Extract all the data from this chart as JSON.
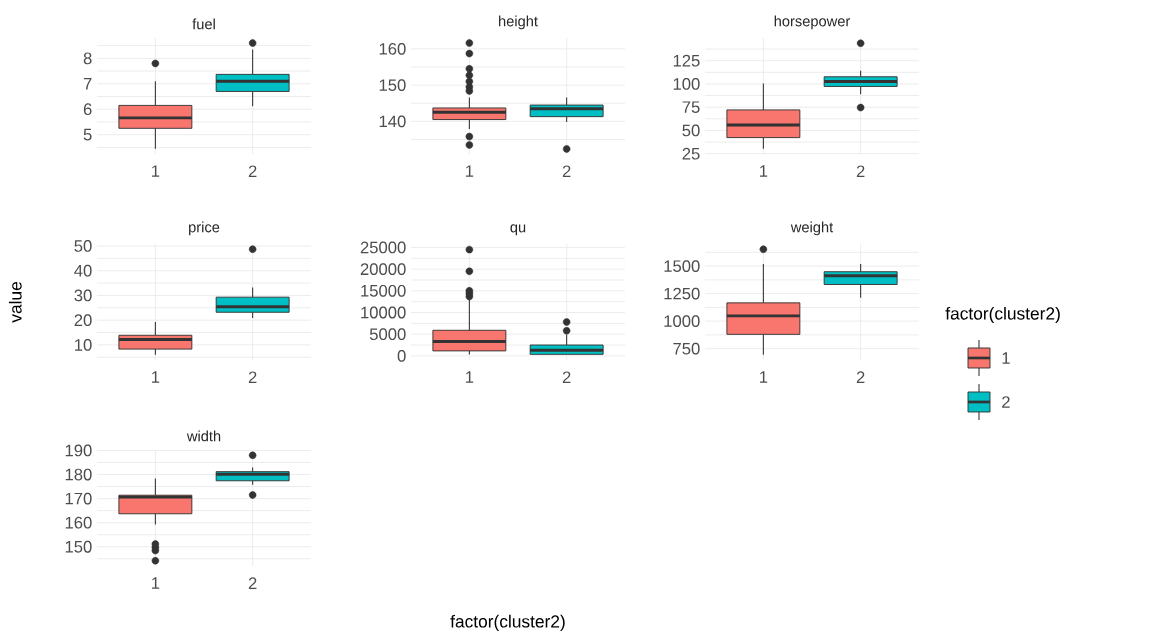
{
  "chart_data": [
    {
      "type": "box",
      "title": "fuel",
      "categories": [
        "1",
        "2"
      ],
      "grid": true,
      "ylim": [
        4.24,
        8.8
      ],
      "yticks": [
        {
          "value": 4.5,
          "label": null
        },
        5,
        {
          "value": 5.5,
          "label": null
        },
        6,
        {
          "value": 6.5,
          "label": null
        },
        7,
        {
          "value": 7.5,
          "label": null
        },
        8,
        {
          "value": 8.5,
          "label": null
        }
      ],
      "series": [
        {
          "color": "#f8766d",
          "boxes": [
            {
              "low": 4.45,
              "q1": 5.25,
              "median": 5.66,
              "q3": 6.15,
              "high": 7.1,
              "outliers": [
                7.8
              ]
            },
            null
          ]
        },
        {
          "color": "#00bfc4",
          "boxes": [
            null,
            {
              "low": 6.12,
              "q1": 6.7,
              "median": 7.1,
              "q3": 7.37,
              "high": 8.35,
              "outliers": [
                8.6
              ]
            }
          ]
        }
      ]
    },
    {
      "type": "box",
      "title": "height",
      "categories": [
        "1",
        "2"
      ],
      "grid": true,
      "ylim": [
        131,
        163
      ],
      "yticks": [
        {
          "value": 135,
          "label": null
        },
        140,
        {
          "value": 145,
          "label": null
        },
        150,
        {
          "value": 155,
          "label": null
        },
        160
      ],
      "series": [
        {
          "color": "#f8766d",
          "boxes": [
            {
              "low": 137.9,
              "q1": 140.5,
              "median": 142.5,
              "q3": 143.7,
              "high": 146.6,
              "outliers": [
                133.5,
                135.8,
                148.4,
                149.5,
                151,
                152.7,
                154.5,
                158.7,
                161.6
              ]
            },
            null
          ]
        },
        {
          "color": "#00bfc4",
          "boxes": [
            null,
            {
              "low": 139.8,
              "q1": 141.3,
              "median": 143.5,
              "q3": 144.5,
              "high": 146.6,
              "outliers": [
                132.4
              ]
            }
          ]
        }
      ]
    },
    {
      "type": "box",
      "title": "horsepower",
      "categories": [
        "1",
        "2"
      ],
      "grid": true,
      "ylim": [
        24.7,
        149.4
      ],
      "yticks": [
        25,
        {
          "value": 37.5,
          "label": null
        },
        50,
        {
          "value": 62.5,
          "label": null
        },
        75,
        {
          "value": 87.5,
          "label": null
        },
        100,
        {
          "value": 112.5,
          "label": null
        },
        125,
        {
          "value": 137.5,
          "label": null
        }
      ],
      "series": [
        {
          "color": "#f8766d",
          "boxes": [
            {
              "low": 30.4,
              "q1": 42.3,
              "median": 55.9,
              "q3": 72.1,
              "high": 100.5
            },
            null
          ]
        },
        {
          "color": "#00bfc4",
          "boxes": [
            null,
            {
              "low": 89,
              "q1": 97.3,
              "median": 102.7,
              "q3": 107.7,
              "high": 114.2,
              "outliers": [
                74.6,
                143.7
              ]
            }
          ]
        }
      ]
    },
    {
      "type": "box",
      "title": "price",
      "ylabel": "value",
      "categories": [
        "1",
        "2"
      ],
      "grid": true,
      "ylim": [
        3.9,
        50.8
      ],
      "yticks": [
        {
          "value": 5,
          "label": null
        },
        10,
        {
          "value": 15,
          "label": null
        },
        20,
        {
          "value": 25,
          "label": null
        },
        30,
        {
          "value": 35,
          "label": null
        },
        40,
        {
          "value": 45,
          "label": null
        },
        50
      ],
      "series": [
        {
          "color": "#f8766d",
          "boxes": [
            {
              "low": 6,
              "q1": 8.3,
              "median": 12.2,
              "q3": 13.9,
              "high": 19.3
            },
            null
          ]
        },
        {
          "color": "#00bfc4",
          "boxes": [
            null,
            {
              "low": 20.9,
              "q1": 23.2,
              "median": 25.4,
              "q3": 29.3,
              "high": 33.2,
              "outliers": [
                48.7
              ]
            }
          ]
        }
      ]
    },
    {
      "type": "box",
      "title": "qu",
      "xlabel": "factor(cluster2)",
      "categories": [
        "1",
        "2"
      ],
      "grid": true,
      "ylim": [
        -950,
        25800
      ],
      "yticks": [
        0,
        {
          "value": 2500,
          "label": null
        },
        5000,
        {
          "value": 7500,
          "label": null
        },
        10000,
        {
          "value": 12500,
          "label": null
        },
        15000,
        {
          "value": 17500,
          "label": null
        },
        20000,
        {
          "value": 22500,
          "label": null
        },
        25000
      ],
      "series": [
        {
          "color": "#f8766d",
          "boxes": [
            {
              "low": 300,
              "q1": 1150,
              "median": 3300,
              "q3": 5900,
              "high": 13000,
              "outliers": [
                13700,
                14400,
                15000,
                19500,
                24500
              ]
            },
            null
          ]
        },
        {
          "color": "#00bfc4",
          "boxes": [
            null,
            {
              "low": 350,
              "q1": 350,
              "median": 1300,
              "q3": 2500,
              "high": 4900,
              "outliers": [
                5800,
                7800
              ]
            }
          ]
        }
      ]
    },
    {
      "type": "box",
      "title": "weight",
      "legend": "right",
      "legend_title": "factor(cluster2)",
      "categories": [
        "1",
        "2"
      ],
      "grid": true,
      "ylim": [
        647,
        1701
      ],
      "yticks": [
        750,
        {
          "value": 875,
          "label": null
        },
        1000,
        {
          "value": 1125,
          "label": null
        },
        1250,
        {
          "value": 1375,
          "label": null
        },
        1500,
        {
          "value": 1625,
          "label": null
        }
      ],
      "series": [
        {
          "name": "1",
          "color": "#f8766d",
          "boxes": [
            {
              "low": 695,
              "q1": 880,
              "median": 1048,
              "q3": 1166,
              "high": 1519,
              "outliers": [
                1653
              ]
            },
            null
          ]
        },
        {
          "name": "2",
          "color": "#00bfc4",
          "boxes": [
            null,
            {
              "low": 1212,
              "q1": 1333,
              "median": 1413,
              "q3": 1449,
              "high": 1519
            }
          ]
        }
      ]
    },
    {
      "type": "box",
      "title": "width",
      "categories": [
        "1",
        "2"
      ],
      "grid": true,
      "ylim": [
        142,
        190.2
      ],
      "yticks": [
        {
          "value": 145,
          "label": null
        },
        150,
        {
          "value": 155,
          "label": null
        },
        160,
        {
          "value": 165,
          "label": null
        },
        170,
        {
          "value": 175,
          "label": null
        },
        180,
        {
          "value": 185,
          "label": null
        },
        190
      ],
      "series": [
        {
          "color": "#f8766d",
          "boxes": [
            {
              "low": 159.2,
              "q1": 163.7,
              "median": 170.6,
              "q3": 171.4,
              "high": 178.4,
              "outliers": [
                144.2,
                148.4,
                149.7,
                151.1
              ]
            },
            null
          ]
        },
        {
          "color": "#00bfc4",
          "boxes": [
            null,
            {
              "low": 175.8,
              "q1": 177.4,
              "median": 180.1,
              "q3": 181.2,
              "high": 182.9,
              "outliers": [
                171.5,
                188
              ]
            }
          ]
        }
      ]
    }
  ]
}
